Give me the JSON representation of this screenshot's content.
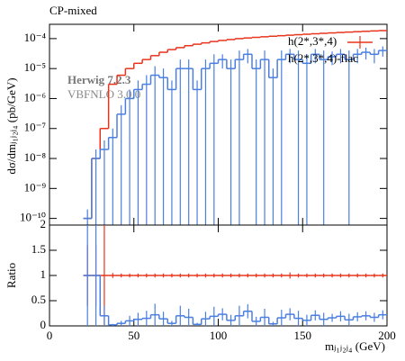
{
  "chart_data": [
    {
      "type": "histogram",
      "title": "CP-mixed",
      "y_label": "dσ/dmⱼ₁ⱼ₂ⱼ₄ (pb/GeV)",
      "yscale": "log",
      "annotations": [
        "Herwig 7.2.3",
        "VBFNLO 3.0.0"
      ],
      "legend": "upper right",
      "bins": [
        20,
        25,
        30,
        35,
        40,
        45,
        50,
        55,
        60,
        65,
        70,
        75,
        80,
        85,
        90,
        95,
        100,
        105,
        110,
        115,
        120,
        125,
        130,
        135,
        140,
        145,
        150,
        155,
        160,
        165,
        170,
        175,
        180,
        185,
        190,
        195,
        200
      ],
      "xlim": [
        0,
        200
      ],
      "xticks": [
        0,
        50,
        100,
        150,
        200
      ],
      "ylim": [
        6e-11,
        0.0003
      ],
      "yticks": [
        {
          "value": 1e-10,
          "label": "10⁻¹⁰"
        },
        {
          "value": 1e-09,
          "label": "10⁻⁹"
        },
        {
          "value": 1e-08,
          "label": "10⁻⁸"
        },
        {
          "value": 1e-07,
          "label": "10⁻⁷"
        },
        {
          "value": 1e-06,
          "label": "10⁻⁶"
        },
        {
          "value": 1e-05,
          "label": "10⁻⁵"
        },
        {
          "value": 0.0001,
          "label": "10⁻⁴"
        }
      ],
      "series": [
        {
          "name": "h(2*,3*,4)",
          "color": "#e8341c",
          "values": [
            1e-10,
            1e-08,
            1e-07,
            3e-06,
            6e-06,
            1e-05,
            1.5e-05,
            2e-05,
            2.7e-05,
            3.5e-05,
            4.3e-05,
            5e-05,
            5.8e-05,
            6.5e-05,
            7.2e-05,
            8e-05,
            8.7e-05,
            9.3e-05,
            0.0001,
            0.000105,
            0.00011,
            0.000115,
            0.00012,
            0.000125,
            0.00013,
            0.000135,
            0.00014,
            0.000145,
            0.00015,
            0.000155,
            0.00016,
            0.000165,
            0.00017,
            0.000175,
            0.00018,
            0.000185
          ]
        },
        {
          "name": "h(2*,3*,4)-flac",
          "color": "#4a7fe0",
          "values": [
            1e-10,
            1e-08,
            2e-08,
            5e-08,
            3e-07,
            1e-06,
            2e-06,
            3e-06,
            6e-06,
            5e-06,
            2e-06,
            1e-05,
            1e-05,
            2e-06,
            1e-05,
            1.5e-05,
            2e-05,
            1e-05,
            2e-05,
            3e-05,
            1e-05,
            2e-05,
            5e-06,
            2e-05,
            3e-05,
            2e-05,
            1.5e-05,
            3e-05,
            2e-05,
            2.5e-05,
            3e-05,
            2e-05,
            3e-05,
            3.5e-05,
            3e-05,
            4e-05
          ],
          "errors": [
            1e-10,
            1e-08,
            2e-08,
            5e-08,
            3e-07,
            1e-06,
            2e-06,
            3e-06,
            6e-06,
            5e-06,
            2e-06,
            1e-05,
            1e-05,
            2e-06,
            1e-05,
            1.5e-05,
            1e-05,
            1e-05,
            2e-05,
            1.5e-05,
            1e-05,
            2e-05,
            5e-06,
            2e-05,
            1.5e-05,
            2e-05,
            1.5e-05,
            1.5e-05,
            2e-05,
            1.2e-05,
            1.5e-05,
            2e-05,
            1.5e-05,
            1.5e-05,
            1.5e-05,
            1.5e-05
          ]
        }
      ]
    },
    {
      "type": "histogram",
      "y_label": "Ratio",
      "x_label": "mⱼ₁ⱼ₂ⱼ₄ (GeV)",
      "bins": [
        20,
        25,
        30,
        35,
        40,
        45,
        50,
        55,
        60,
        65,
        70,
        75,
        80,
        85,
        90,
        95,
        100,
        105,
        110,
        115,
        120,
        125,
        130,
        135,
        140,
        145,
        150,
        155,
        160,
        165,
        170,
        175,
        180,
        185,
        190,
        195,
        200
      ],
      "xlim": [
        0,
        200
      ],
      "xticks": [
        0,
        50,
        100,
        150,
        200
      ],
      "ylim": [
        0,
        2
      ],
      "yticks": [
        0,
        0.5,
        1,
        1.5,
        2
      ],
      "series": [
        {
          "name": "h(2*,3*,4)",
          "color": "#e8341c",
          "values": [
            1,
            1,
            1,
            1,
            1,
            1,
            1,
            1,
            1,
            1,
            1,
            1,
            1,
            1,
            1,
            1,
            1,
            1,
            1,
            1,
            1,
            1,
            1,
            1,
            1,
            1,
            1,
            1,
            1,
            1,
            1,
            1,
            1,
            1,
            1,
            1
          ],
          "errors": [
            0.6,
            0.6,
            1.2,
            0.05,
            0.04,
            0.04,
            0.04,
            0.04,
            0.04,
            0.04,
            0.04,
            0.04,
            0.04,
            0.04,
            0.04,
            0.04,
            0.04,
            0.04,
            0.04,
            0.04,
            0.04,
            0.04,
            0.04,
            0.04,
            0.06,
            0.04,
            0.04,
            0.04,
            0.04,
            0.04,
            0.04,
            0.04,
            0.04,
            0.04,
            0.04,
            0.04
          ]
        },
        {
          "name": "h(2*,3*,4)-flac",
          "color": "#4a7fe0",
          "values": [
            1,
            1,
            0.2,
            0.02,
            0.05,
            0.1,
            0.13,
            0.15,
            0.22,
            0.14,
            0.05,
            0.2,
            0.17,
            0.03,
            0.14,
            0.19,
            0.23,
            0.11,
            0.2,
            0.29,
            0.09,
            0.17,
            0.04,
            0.16,
            0.23,
            0.15,
            0.11,
            0.21,
            0.13,
            0.16,
            0.19,
            0.12,
            0.18,
            0.2,
            0.17,
            0.22
          ],
          "errors": [
            1,
            1,
            0.2,
            0.02,
            0.05,
            0.1,
            0.13,
            0.15,
            0.22,
            0.14,
            0.05,
            0.2,
            0.17,
            0.03,
            0.14,
            0.19,
            0.12,
            0.11,
            0.2,
            0.14,
            0.09,
            0.17,
            0.04,
            0.16,
            0.12,
            0.15,
            0.11,
            0.1,
            0.13,
            0.08,
            0.1,
            0.12,
            0.09,
            0.09,
            0.09,
            0.09
          ]
        }
      ]
    }
  ]
}
